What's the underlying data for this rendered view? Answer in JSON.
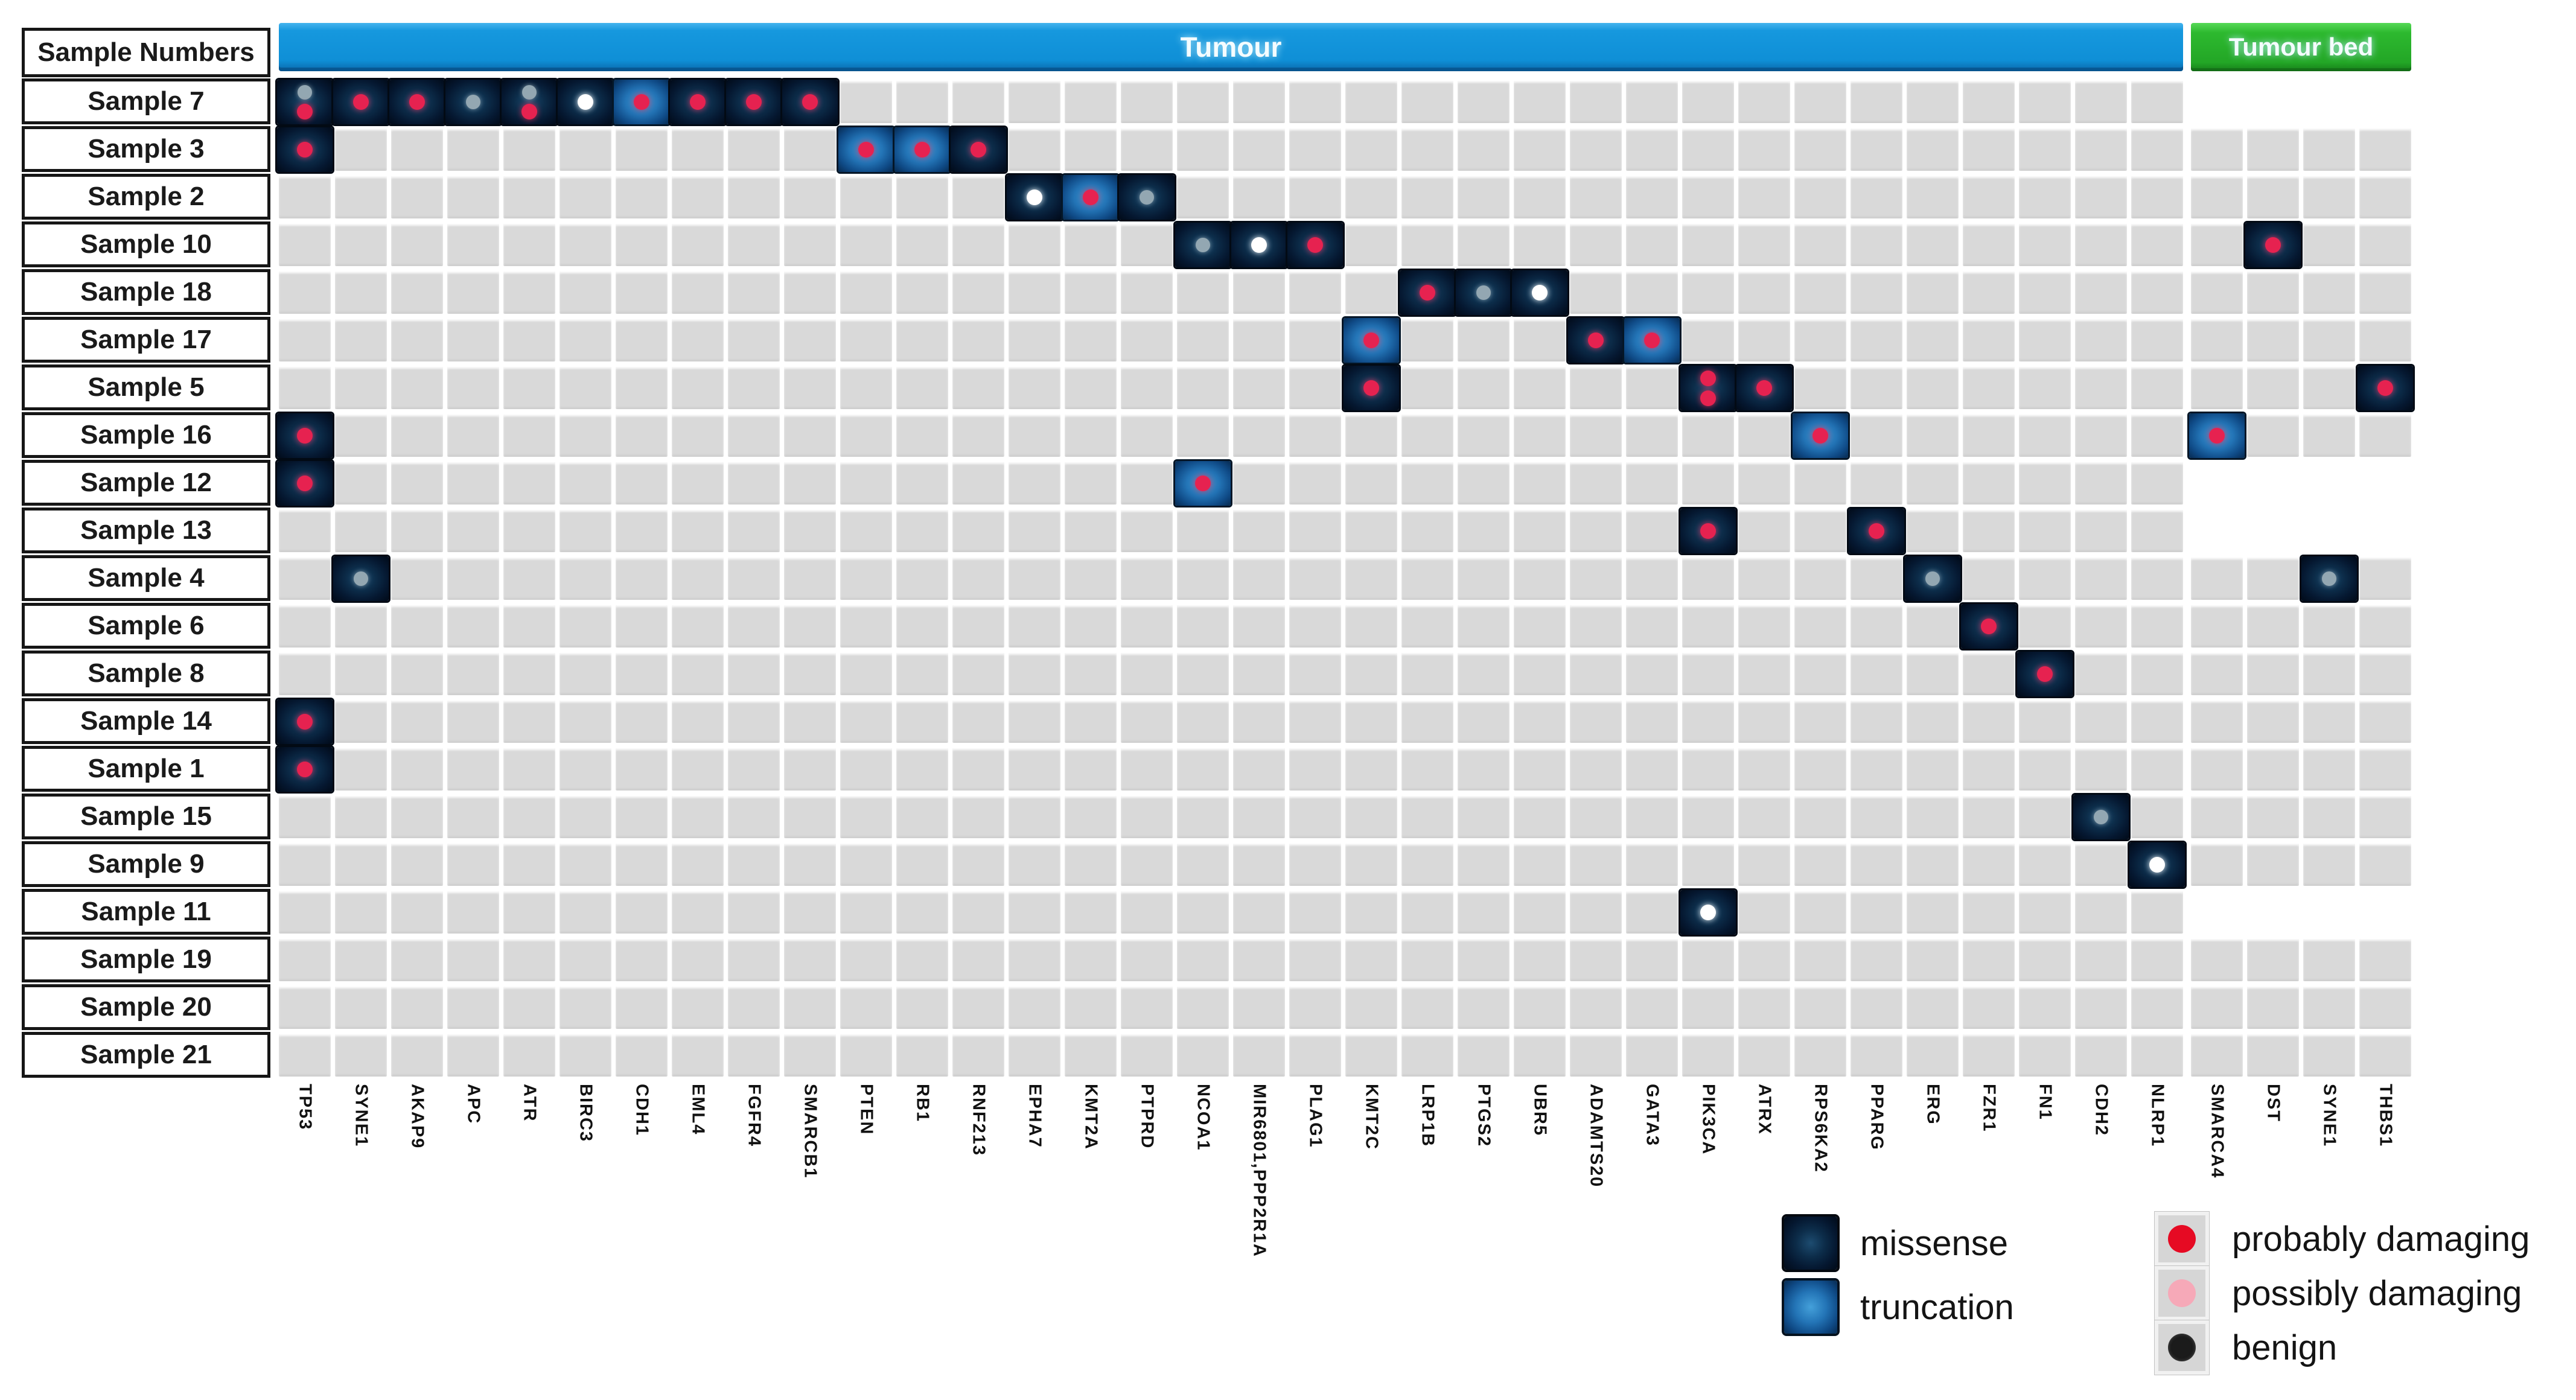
{
  "chart_data": {
    "type": "heatmap",
    "title": "",
    "row_header": "Sample Numbers",
    "sections": [
      {
        "name": "Tumour",
        "genes": [
          "TP53",
          "SYNE1",
          "AKAP9",
          "APC",
          "ATR",
          "BIRC3",
          "CDH1",
          "EML4",
          "FGFR4",
          "SMARCB1",
          "PTEN",
          "RB1",
          "RNF213",
          "EPHA7",
          "KMT2A",
          "PTPRD",
          "NCOA1",
          "MIR6801,PPP2R1A",
          "PLAG1",
          "KMT2C",
          "LRP1B",
          "PTGS2",
          "UBR5",
          "ADAMTS20",
          "GATA3",
          "PIK3CA",
          "ATRX",
          "RPS6KA2",
          "PPARG",
          "ERG",
          "FZR1",
          "FN1",
          "CDH2",
          "NLRP1"
        ]
      },
      {
        "name": "Tumour bed",
        "genes": [
          "SMARCA4",
          "DST",
          "SYNE1",
          "THBS1"
        ]
      }
    ],
    "rows": [
      "Sample 7",
      "Sample 3",
      "Sample 2",
      "Sample 10",
      "Sample 18",
      "Sample 17",
      "Sample 5",
      "Sample 16",
      "Sample 12",
      "Sample 13",
      "Sample 4",
      "Sample 6",
      "Sample 8",
      "Sample 14",
      "Sample 1",
      "Sample 15",
      "Sample 9",
      "Sample 11",
      "Sample 19",
      "Sample 20",
      "Sample 21"
    ],
    "tumour_bed_row_absent": [
      "Sample 7",
      "Sample 12",
      "Sample 13",
      "Sample 11"
    ],
    "mutations": [
      {
        "sample": "Sample 7",
        "section": "Tumour",
        "gene": "TP53",
        "type": "missense",
        "dots": [
          "gray",
          "red"
        ]
      },
      {
        "sample": "Sample 7",
        "section": "Tumour",
        "gene": "SYNE1",
        "type": "missense",
        "dots": [
          "red"
        ]
      },
      {
        "sample": "Sample 7",
        "section": "Tumour",
        "gene": "AKAP9",
        "type": "missense",
        "dots": [
          "red"
        ]
      },
      {
        "sample": "Sample 7",
        "section": "Tumour",
        "gene": "APC",
        "type": "missense",
        "dots": [
          "gray"
        ]
      },
      {
        "sample": "Sample 7",
        "section": "Tumour",
        "gene": "ATR",
        "type": "missense",
        "dots": [
          "gray",
          "red"
        ]
      },
      {
        "sample": "Sample 7",
        "section": "Tumour",
        "gene": "BIRC3",
        "type": "missense",
        "dots": [
          "white"
        ]
      },
      {
        "sample": "Sample 7",
        "section": "Tumour",
        "gene": "CDH1",
        "type": "truncation",
        "dots": [
          "red"
        ]
      },
      {
        "sample": "Sample 7",
        "section": "Tumour",
        "gene": "EML4",
        "type": "missense",
        "dots": [
          "red"
        ]
      },
      {
        "sample": "Sample 7",
        "section": "Tumour",
        "gene": "FGFR4",
        "type": "missense",
        "dots": [
          "red"
        ]
      },
      {
        "sample": "Sample 7",
        "section": "Tumour",
        "gene": "SMARCB1",
        "type": "missense",
        "dots": [
          "red"
        ]
      },
      {
        "sample": "Sample 3",
        "section": "Tumour",
        "gene": "TP53",
        "type": "missense",
        "dots": [
          "red"
        ]
      },
      {
        "sample": "Sample 3",
        "section": "Tumour",
        "gene": "PTEN",
        "type": "truncation",
        "dots": [
          "red"
        ]
      },
      {
        "sample": "Sample 3",
        "section": "Tumour",
        "gene": "RB1",
        "type": "truncation",
        "dots": [
          "red"
        ]
      },
      {
        "sample": "Sample 3",
        "section": "Tumour",
        "gene": "RNF213",
        "type": "missense",
        "dots": [
          "red"
        ]
      },
      {
        "sample": "Sample 2",
        "section": "Tumour",
        "gene": "EPHA7",
        "type": "missense",
        "dots": [
          "white"
        ]
      },
      {
        "sample": "Sample 2",
        "section": "Tumour",
        "gene": "KMT2A",
        "type": "truncation",
        "dots": [
          "red"
        ]
      },
      {
        "sample": "Sample 2",
        "section": "Tumour",
        "gene": "PTPRD",
        "type": "missense",
        "dots": [
          "gray"
        ]
      },
      {
        "sample": "Sample 10",
        "section": "Tumour",
        "gene": "NCOA1",
        "type": "missense",
        "dots": [
          "gray"
        ]
      },
      {
        "sample": "Sample 10",
        "section": "Tumour",
        "gene": "MIR6801,PPP2R1A",
        "type": "missense",
        "dots": [
          "white"
        ]
      },
      {
        "sample": "Sample 10",
        "section": "Tumour",
        "gene": "PLAG1",
        "type": "missense",
        "dots": [
          "red"
        ]
      },
      {
        "sample": "Sample 10",
        "section": "Tumour bed",
        "gene": "DST",
        "type": "missense",
        "dots": [
          "red"
        ]
      },
      {
        "sample": "Sample 18",
        "section": "Tumour",
        "gene": "LRP1B",
        "type": "missense",
        "dots": [
          "red"
        ]
      },
      {
        "sample": "Sample 18",
        "section": "Tumour",
        "gene": "PTGS2",
        "type": "missense",
        "dots": [
          "gray"
        ]
      },
      {
        "sample": "Sample 18",
        "section": "Tumour",
        "gene": "UBR5",
        "type": "missense",
        "dots": [
          "white"
        ]
      },
      {
        "sample": "Sample 17",
        "section": "Tumour",
        "gene": "KMT2C",
        "type": "truncation",
        "dots": [
          "red"
        ]
      },
      {
        "sample": "Sample 17",
        "section": "Tumour",
        "gene": "ADAMTS20",
        "type": "missense",
        "dots": [
          "red"
        ]
      },
      {
        "sample": "Sample 17",
        "section": "Tumour",
        "gene": "GATA3",
        "type": "truncation",
        "dots": [
          "red"
        ]
      },
      {
        "sample": "Sample 5",
        "section": "Tumour",
        "gene": "KMT2C",
        "type": "missense",
        "dots": [
          "red"
        ]
      },
      {
        "sample": "Sample 5",
        "section": "Tumour",
        "gene": "PIK3CA",
        "type": "missense",
        "dots": [
          "red",
          "red"
        ]
      },
      {
        "sample": "Sample 5",
        "section": "Tumour",
        "gene": "ATRX",
        "type": "missense",
        "dots": [
          "red"
        ]
      },
      {
        "sample": "Sample 5",
        "section": "Tumour bed",
        "gene": "THBS1",
        "type": "missense",
        "dots": [
          "red"
        ]
      },
      {
        "sample": "Sample 16",
        "section": "Tumour",
        "gene": "TP53",
        "type": "missense",
        "dots": [
          "red"
        ]
      },
      {
        "sample": "Sample 16",
        "section": "Tumour",
        "gene": "RPS6KA2",
        "type": "truncation",
        "dots": [
          "red"
        ]
      },
      {
        "sample": "Sample 16",
        "section": "Tumour bed",
        "gene": "SMARCA4",
        "type": "truncation",
        "dots": [
          "red"
        ]
      },
      {
        "sample": "Sample 12",
        "section": "Tumour",
        "gene": "TP53",
        "type": "missense",
        "dots": [
          "red"
        ]
      },
      {
        "sample": "Sample 12",
        "section": "Tumour",
        "gene": "NCOA1",
        "type": "truncation",
        "dots": [
          "red"
        ]
      },
      {
        "sample": "Sample 13",
        "section": "Tumour",
        "gene": "PIK3CA",
        "type": "missense",
        "dots": [
          "red"
        ]
      },
      {
        "sample": "Sample 13",
        "section": "Tumour",
        "gene": "PPARG",
        "type": "missense",
        "dots": [
          "red"
        ]
      },
      {
        "sample": "Sample 4",
        "section": "Tumour",
        "gene": "SYNE1",
        "type": "missense",
        "dots": [
          "gray"
        ]
      },
      {
        "sample": "Sample 4",
        "section": "Tumour",
        "gene": "ERG",
        "type": "missense",
        "dots": [
          "gray"
        ]
      },
      {
        "sample": "Sample 4",
        "section": "Tumour bed",
        "gene": "SYNE1",
        "type": "missense",
        "dots": [
          "gray"
        ]
      },
      {
        "sample": "Sample 6",
        "section": "Tumour",
        "gene": "FZR1",
        "type": "missense",
        "dots": [
          "red"
        ]
      },
      {
        "sample": "Sample 8",
        "section": "Tumour",
        "gene": "FN1",
        "type": "missense",
        "dots": [
          "red"
        ]
      },
      {
        "sample": "Sample 14",
        "section": "Tumour",
        "gene": "TP53",
        "type": "missense",
        "dots": [
          "red"
        ]
      },
      {
        "sample": "Sample 1",
        "section": "Tumour",
        "gene": "TP53",
        "type": "missense",
        "dots": [
          "red"
        ]
      },
      {
        "sample": "Sample 15",
        "section": "Tumour",
        "gene": "CDH2",
        "type": "missense",
        "dots": [
          "gray"
        ]
      },
      {
        "sample": "Sample 9",
        "section": "Tumour",
        "gene": "NLRP1",
        "type": "missense",
        "dots": [
          "white"
        ]
      },
      {
        "sample": "Sample 11",
        "section": "Tumour",
        "gene": "PIK3CA",
        "type": "missense",
        "dots": [
          "white"
        ]
      }
    ],
    "legend": {
      "mutation_types": [
        {
          "key": "missense",
          "label": "missense"
        },
        {
          "key": "truncation",
          "label": "truncation"
        }
      ],
      "damage_levels": [
        {
          "key": "red",
          "label": "probably damaging"
        },
        {
          "key": "pink",
          "label": "possibly damaging"
        },
        {
          "key": "black",
          "label": "benign"
        }
      ],
      "grid_dot_meaning": {
        "red": "probably damaging",
        "pink": "possibly damaging",
        "gray": "benign",
        "white": "benign"
      }
    },
    "colors": {
      "tumour_header": "#1095dc",
      "tumour_bed_header": "#2cb92f",
      "empty_cell": "#d9d9d9",
      "missense_cell": "#0c2c49",
      "truncation_cell": "#2374b6",
      "dot_red": "#e62250",
      "dot_pink": "#f6a9b8",
      "dot_gray": "#93a7b2",
      "dot_white": "#ffffff",
      "dot_black": "#1b1b1b"
    },
    "layout_hints": {
      "grid_on": true,
      "legend_position": "bottom-right"
    }
  }
}
